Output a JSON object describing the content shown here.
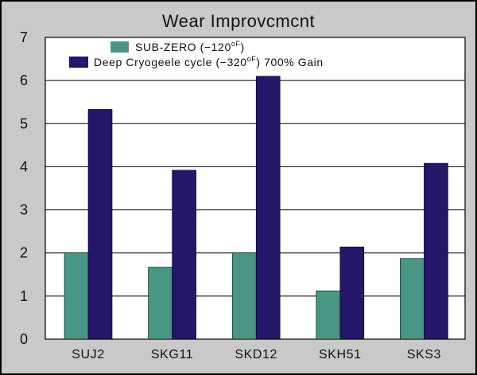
{
  "chart_data": {
    "type": "bar",
    "title": "Wear Improvcmcnt",
    "categories": [
      "SUJ2",
      "SKG11",
      "SKD12",
      "SKH51",
      "SKS3"
    ],
    "series": [
      {
        "name": "SUB-ZERO (−120°F)",
        "legend_main": "SUB-ZERO (−120",
        "legend_sup": "oF",
        "legend_tail": ")",
        "color": "#4a9685",
        "values": [
          2.0,
          1.67,
          2.0,
          1.12,
          1.87
        ]
      },
      {
        "name": "Deep Cryogeele cycle (−320°F) 700% Gain",
        "legend_main": "Deep Cryogeele cycle (−320",
        "legend_sup": "oF",
        "legend_tail": ") 700% Gain",
        "color": "#24176a",
        "values": [
          5.33,
          3.92,
          6.1,
          2.14,
          4.08
        ]
      }
    ],
    "ylim": [
      0,
      7
    ],
    "yticks": [
      "0",
      "1",
      "2",
      "3",
      "4",
      "5",
      "6",
      "7"
    ],
    "grid": true,
    "legend_position": "top-left"
  }
}
